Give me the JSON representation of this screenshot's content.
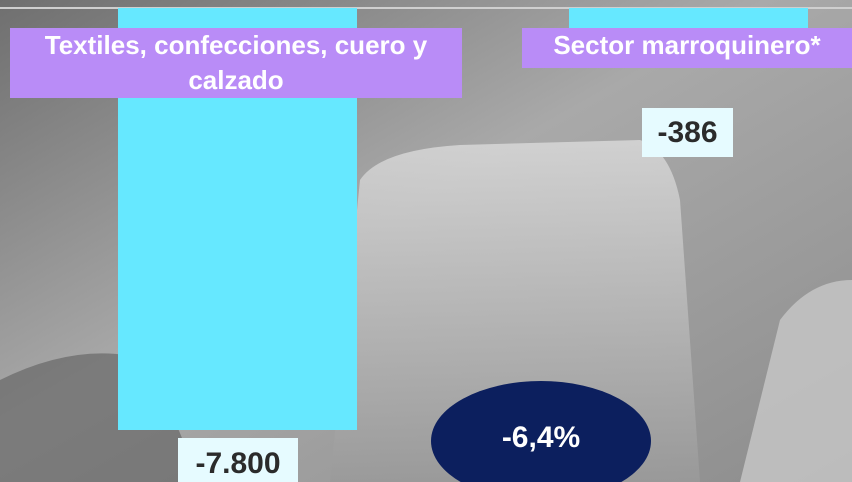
{
  "chart_data": {
    "type": "bar",
    "categories": [
      "Textiles, confecciones, cuero y calzado",
      "Sector marroquinero*"
    ],
    "values": [
      -7800,
      -386
    ],
    "value_labels": [
      "-7.800",
      "-386"
    ],
    "annotation": "-6,4%",
    "color": "#66e8ff",
    "ylim": [
      -7800,
      0
    ]
  }
}
